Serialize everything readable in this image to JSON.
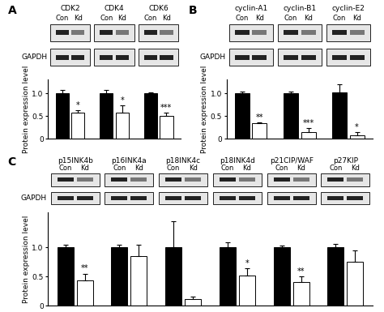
{
  "chart_data": [
    {
      "type": "bar",
      "panel": "A",
      "y_label": "Protein expression level",
      "loading_control": "GAPDH",
      "categories": [
        "CDK2",
        "CDK4",
        "CDK6"
      ],
      "series": [
        {
          "name": "Con",
          "color": "#000000",
          "values": [
            1.0,
            1.0,
            1.0
          ],
          "errors": [
            0.07,
            0.08,
            0.02
          ]
        },
        {
          "name": "Kd",
          "color": "#ffffff",
          "values": [
            0.58,
            0.58,
            0.5
          ],
          "errors": [
            0.05,
            0.15,
            0.08
          ],
          "annotations": [
            "*",
            "*",
            "***"
          ]
        }
      ],
      "ylim": [
        0,
        1.3
      ],
      "yticks": [
        0,
        0.5,
        {
          "value": 1,
          "label": "1.0"
        }
      ],
      "tick_labels": "y"
    },
    {
      "type": "bar",
      "panel": "B",
      "y_label": "Protein expression level",
      "loading_control": "GAPDH",
      "categories": [
        "cyclin-A1",
        "cyclin-B1",
        "cyclin-E2"
      ],
      "series": [
        {
          "name": "Con",
          "color": "#000000",
          "values": [
            1.0,
            1.0,
            1.02
          ],
          "errors": [
            0.03,
            0.03,
            0.18
          ]
        },
        {
          "name": "Kd",
          "color": "#ffffff",
          "values": [
            0.35,
            0.15,
            0.08
          ],
          "errors": [
            0.01,
            0.08,
            0.06
          ],
          "annotations": [
            "**",
            "***",
            "*"
          ]
        }
      ],
      "ylim": [
        0,
        1.3
      ],
      "yticks": [
        0,
        0.5,
        {
          "value": 1,
          "label": "1.0"
        }
      ],
      "tick_labels": "y"
    },
    {
      "type": "bar",
      "panel": "C",
      "y_label": "Protein expression level",
      "loading_control": "GAPDH",
      "categories": [
        "p15INK4b",
        "p16INK4a",
        "p18INK4c",
        "p18INK4d",
        "p21CIP/WAF",
        "p27KIP"
      ],
      "series": [
        {
          "name": "Con",
          "color": "#000000",
          "values": [
            1.0,
            1.0,
            1.0,
            1.0,
            1.0,
            1.0
          ],
          "errors": [
            0.05,
            0.05,
            0.45,
            0.08,
            0.03,
            0.06
          ]
        },
        {
          "name": "Kd",
          "color": "#ffffff",
          "values": [
            0.43,
            0.85,
            0.12,
            0.52,
            0.4,
            0.75
          ],
          "errors": [
            0.12,
            0.2,
            0.03,
            0.12,
            0.1,
            0.2
          ],
          "annotations": [
            "**",
            null,
            null,
            "*",
            "**",
            null
          ]
        }
      ],
      "ylim": [
        0,
        1.6
      ],
      "yticks": [
        0,
        0.5,
        {
          "value": 1,
          "label": "1.0"
        }
      ],
      "tick_labels": "y"
    }
  ]
}
